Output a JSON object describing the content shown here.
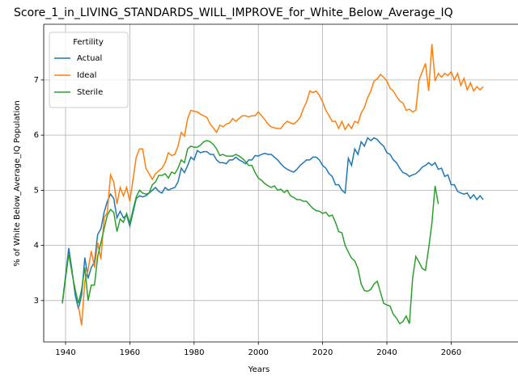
{
  "chart_data": {
    "type": "line",
    "title": "Score_1_in_LIVING_STANDARDS_WILL_IMPROVE_for_White_Below_Average_IQ",
    "xlabel": "Years",
    "ylabel": "% of White Below_Average_IQ Population",
    "legend_title": "Fertility",
    "legend": "upper left",
    "grid": true,
    "xlim": [
      1933.2,
      2080.8
    ],
    "ylim": [
      2.25,
      8.01
    ],
    "xticks": [
      1940,
      1960,
      1980,
      2000,
      2020,
      2040,
      2060
    ],
    "yticks": [
      3,
      4,
      5,
      6,
      7
    ],
    "x": [
      1939,
      1940,
      1941,
      1942,
      1943,
      1944,
      1945,
      1946,
      1947,
      1948,
      1949,
      1950,
      1951,
      1952,
      1953,
      1954,
      1955,
      1956,
      1957,
      1958,
      1959,
      1960,
      1961,
      1962,
      1963,
      1964,
      1965,
      1966,
      1967,
      1968,
      1969,
      1970,
      1971,
      1972,
      1973,
      1974,
      1975,
      1976,
      1977,
      1978,
      1979,
      1980,
      1981,
      1982,
      1983,
      1984,
      1985,
      1986,
      1987,
      1988,
      1989,
      1990,
      1991,
      1992,
      1993,
      1994,
      1995,
      1996,
      1997,
      1998,
      1999,
      2000,
      2001,
      2002,
      2003,
      2004,
      2005,
      2006,
      2007,
      2008,
      2009,
      2010,
      2011,
      2012,
      2013,
      2014,
      2015,
      2016,
      2017,
      2018,
      2019,
      2020,
      2021,
      2022,
      2023,
      2024,
      2025,
      2026,
      2027,
      2028,
      2029,
      2030,
      2031,
      2032,
      2033,
      2034,
      2035,
      2036,
      2037,
      2038,
      2039,
      2040,
      2041,
      2042,
      2043,
      2044,
      2045,
      2046,
      2047,
      2048,
      2049,
      2050,
      2051,
      2052,
      2053,
      2054,
      2055,
      2056,
      2057,
      2058,
      2059,
      2060,
      2061,
      2062,
      2063,
      2064,
      2065,
      2066,
      2067,
      2068,
      2069,
      2070
    ],
    "series": [
      {
        "name": "Actual",
        "color": "#1f77b4",
        "values": [
          2.95,
          3.45,
          3.95,
          3.55,
          3.1,
          2.85,
          3.1,
          3.78,
          3.4,
          3.6,
          3.7,
          4.2,
          4.3,
          4.6,
          4.8,
          4.93,
          4.85,
          4.5,
          4.62,
          4.5,
          4.55,
          4.35,
          4.6,
          4.85,
          4.9,
          4.88,
          4.9,
          4.95,
          5.0,
          5.05,
          4.98,
          4.95,
          5.05,
          5.0,
          5.03,
          5.05,
          5.15,
          5.4,
          5.32,
          5.45,
          5.6,
          5.55,
          5.72,
          5.68,
          5.7,
          5.7,
          5.65,
          5.65,
          5.55,
          5.5,
          5.5,
          5.48,
          5.55,
          5.55,
          5.6,
          5.55,
          5.52,
          5.48,
          5.55,
          5.55,
          5.63,
          5.62,
          5.65,
          5.67,
          5.65,
          5.65,
          5.6,
          5.55,
          5.48,
          5.42,
          5.38,
          5.35,
          5.33,
          5.38,
          5.45,
          5.5,
          5.55,
          5.55,
          5.6,
          5.6,
          5.55,
          5.45,
          5.4,
          5.3,
          5.25,
          5.1,
          5.1,
          5.0,
          4.95,
          5.58,
          5.45,
          5.75,
          5.65,
          5.88,
          5.8,
          5.95,
          5.9,
          5.95,
          5.92,
          5.85,
          5.8,
          5.68,
          5.65,
          5.55,
          5.5,
          5.4,
          5.32,
          5.3,
          5.25,
          5.28,
          5.3,
          5.35,
          5.42,
          5.45,
          5.5,
          5.45,
          5.5,
          5.38,
          5.4,
          5.25,
          5.28,
          5.1,
          5.1,
          4.98,
          4.95,
          4.93,
          4.95,
          4.85,
          4.92,
          4.83,
          4.9,
          4.83
        ]
      },
      {
        "name": "Ideal",
        "color": "#ff7f0e",
        "values": [
          null,
          null,
          null,
          null,
          null,
          2.9,
          2.55,
          3.35,
          3.55,
          3.9,
          3.6,
          4.05,
          3.75,
          4.5,
          4.6,
          5.28,
          5.15,
          4.75,
          5.05,
          4.9,
          5.05,
          4.8,
          5.2,
          5.6,
          5.75,
          5.75,
          5.4,
          5.3,
          5.2,
          5.3,
          5.35,
          5.4,
          5.5,
          5.68,
          5.63,
          5.65,
          5.8,
          6.05,
          5.98,
          6.3,
          6.45,
          6.43,
          6.42,
          6.38,
          6.35,
          6.32,
          6.2,
          6.13,
          6.05,
          6.18,
          6.15,
          6.2,
          6.22,
          6.3,
          6.25,
          6.3,
          6.35,
          6.35,
          6.33,
          6.35,
          6.35,
          6.42,
          6.35,
          6.28,
          6.2,
          6.15,
          6.13,
          6.12,
          6.12,
          6.2,
          6.25,
          6.22,
          6.2,
          6.25,
          6.32,
          6.48,
          6.6,
          6.8,
          6.77,
          6.8,
          6.72,
          6.6,
          6.45,
          6.35,
          6.25,
          6.25,
          6.12,
          6.25,
          6.1,
          6.2,
          6.12,
          6.25,
          6.22,
          6.4,
          6.5,
          6.68,
          6.8,
          6.98,
          7.02,
          7.1,
          7.05,
          6.98,
          6.85,
          6.8,
          6.7,
          6.62,
          6.58,
          6.45,
          6.47,
          6.42,
          6.45,
          7.0,
          7.15,
          7.3,
          6.8,
          7.65,
          6.98,
          7.12,
          7.05,
          7.12,
          7.08,
          7.15,
          7.0,
          7.12,
          6.9,
          7.03,
          6.82,
          6.95,
          6.8,
          6.88,
          6.82,
          6.88
        ]
      },
      {
        "name": "Sterile",
        "color": "#2ca02c",
        "values": [
          2.95,
          3.4,
          3.85,
          3.5,
          3.2,
          2.95,
          3.2,
          3.6,
          3.0,
          3.28,
          3.28,
          3.8,
          4.05,
          4.3,
          4.55,
          4.65,
          4.6,
          4.25,
          4.48,
          4.42,
          4.58,
          4.4,
          4.65,
          4.88,
          5.0,
          4.95,
          4.93,
          4.95,
          5.1,
          5.15,
          5.27,
          5.27,
          5.3,
          5.22,
          5.33,
          5.3,
          5.4,
          5.55,
          5.5,
          5.75,
          5.8,
          5.78,
          5.78,
          5.82,
          5.88,
          5.9,
          5.88,
          5.83,
          5.75,
          5.63,
          5.65,
          5.62,
          5.62,
          5.62,
          5.65,
          5.62,
          5.58,
          5.52,
          5.45,
          5.45,
          5.32,
          5.22,
          5.18,
          5.12,
          5.08,
          5.05,
          5.08,
          5.0,
          5.02,
          4.96,
          5.0,
          4.9,
          4.87,
          4.83,
          4.83,
          4.8,
          4.8,
          4.73,
          4.67,
          4.63,
          4.62,
          4.58,
          4.6,
          4.53,
          4.55,
          4.42,
          4.25,
          4.23,
          4.0,
          3.88,
          3.77,
          3.72,
          3.58,
          3.3,
          3.18,
          3.17,
          3.2,
          3.3,
          3.35,
          3.15,
          2.95,
          2.92,
          2.9,
          2.75,
          2.68,
          2.58,
          2.62,
          2.72,
          2.58,
          3.4,
          3.8,
          3.7,
          3.58,
          3.55,
          3.95,
          4.4,
          5.08,
          4.75,
          null,
          null,
          null,
          null,
          null,
          null,
          null,
          null,
          null,
          null,
          null,
          null,
          null,
          null
        ]
      }
    ]
  }
}
